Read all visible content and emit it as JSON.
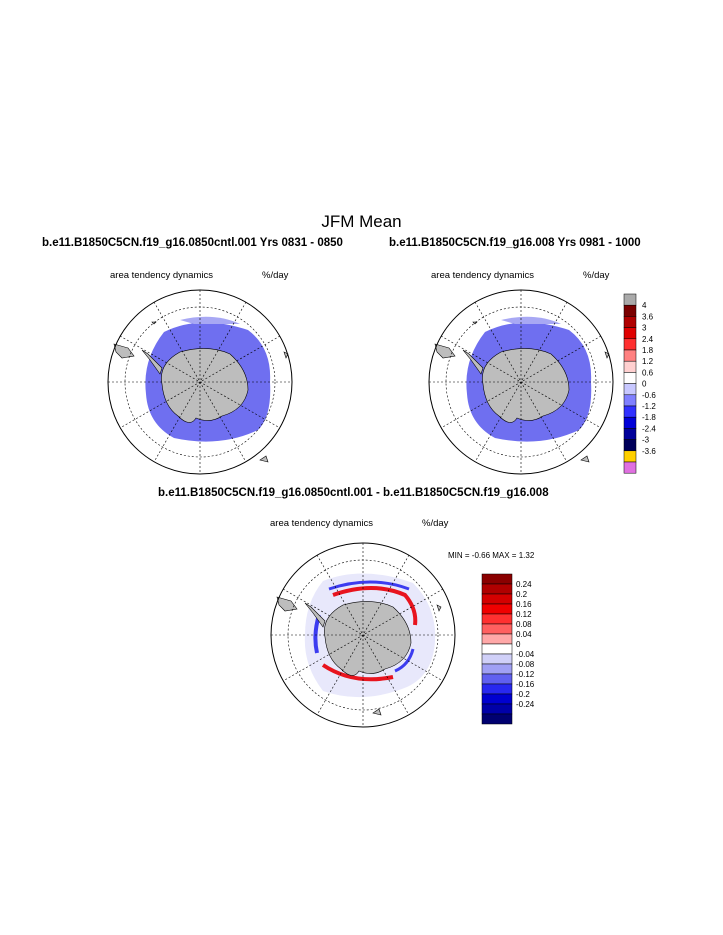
{
  "title": "JFM Mean",
  "panels": [
    {
      "title": "b.e11.B1850C5CN.f19_g16.0850cntl.001  Yrs 0831 - 0850",
      "variable": "area tendency dynamics",
      "units": "%/day"
    },
    {
      "title": "b.e11.B1850C5CN.f19_g16.008  Yrs 0981 - 1000",
      "variable": "area tendency dynamics",
      "units": "%/day"
    },
    {
      "title": "b.e11.B1850C5CN.f19_g16.0850cntl.001 - b.e11.B1850C5CN.f19_g16.008",
      "variable": "area tendency dynamics",
      "units": "%/day",
      "min_max": "MIN =  -0.66 MAX =   1.32"
    }
  ],
  "colors": {
    "land": "#bdbdbd",
    "ice_main": "#6f6ff0",
    "ice_light": "#a8a8f4",
    "diff_red": "#e8141e",
    "diff_blue": "#3c3cf0"
  },
  "legend_top": {
    "labels": [
      "4",
      "3.6",
      "3",
      "2.4",
      "1.8",
      "1.2",
      "0.6",
      "0",
      "-0.6",
      "-1.2",
      "-1.8",
      "-2.4",
      "-3",
      "-3.6"
    ],
    "colors": [
      "#aaaaaa",
      "#7a0000",
      "#b00000",
      "#e00000",
      "#ff3030",
      "#ff8080",
      "#ffd0d0",
      "#ffffff",
      "#c8c8ff",
      "#8080ff",
      "#3030ff",
      "#0000d8",
      "#00009a",
      "#00005a",
      "#ffd000",
      "#e070e0"
    ]
  },
  "legend_diff": {
    "labels": [
      "0.24",
      "0.2",
      "0.16",
      "0.12",
      "0.08",
      "0.04",
      "0",
      "-0.04",
      "-0.08",
      "-0.12",
      "-0.16",
      "-0.2",
      "-0.24"
    ],
    "colors": [
      "#8a0000",
      "#b00000",
      "#d40000",
      "#f00000",
      "#ff3030",
      "#ff6060",
      "#ffa8a8",
      "#ffffff",
      "#d0d0f8",
      "#a0a0f4",
      "#6060f0",
      "#2828f0",
      "#0000d0",
      "#0000a8",
      "#000070"
    ]
  }
}
